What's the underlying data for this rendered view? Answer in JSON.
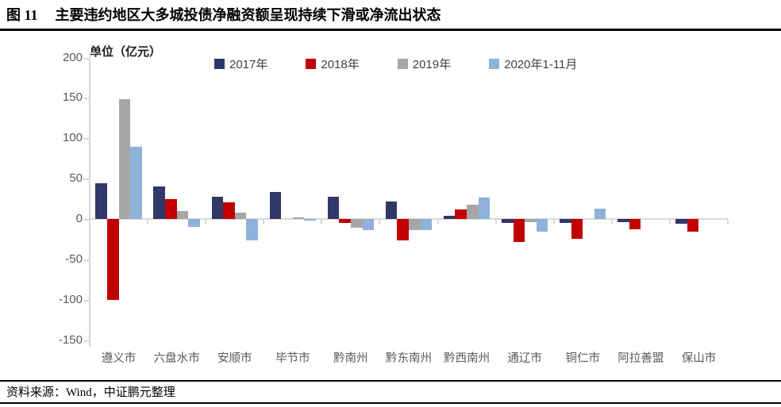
{
  "header": {
    "figure_label": "图 11",
    "title": "主要违约地区大多城投债净融资额呈现持续下滑或净流出状态"
  },
  "footer": {
    "source": "资料来源：Wind，中证鹏元整理"
  },
  "chart_data": {
    "type": "bar",
    "unit_label": "单位（亿元）",
    "categories": [
      "遵义市",
      "六盘水市",
      "安顺市",
      "毕节市",
      "黔南州",
      "黔东南州",
      "黔西南州",
      "通辽市",
      "铜仁市",
      "阿拉善盟",
      "保山市"
    ],
    "series": [
      {
        "name": "2017年",
        "color": "#2F3866",
        "values": [
          44,
          40,
          28,
          33,
          28,
          22,
          4,
          -5,
          -5,
          -4,
          -6
        ]
      },
      {
        "name": "2018年",
        "color": "#C00000",
        "values": [
          -100,
          25,
          21,
          0,
          -5,
          -27,
          12,
          -29,
          -25,
          -13,
          -16
        ]
      },
      {
        "name": "2019年",
        "color": "#A6A6A6",
        "values": [
          148,
          10,
          8,
          2,
          -11,
          -14,
          18,
          -4,
          0,
          0,
          0
        ]
      },
      {
        "name": "2020年1-11月",
        "color": "#8FB2D9",
        "values": [
          89,
          -10,
          -27,
          -2,
          -14,
          -14,
          27,
          -16,
          13,
          0,
          0
        ]
      }
    ],
    "ylim": [
      -150,
      200
    ],
    "yticks": [
      200,
      150,
      100,
      50,
      0,
      -50,
      -100,
      -150
    ],
    "legend_position": "top",
    "grid": false,
    "colors": {
      "axis": "#D9D9D9",
      "tick_text": "#595959"
    }
  }
}
